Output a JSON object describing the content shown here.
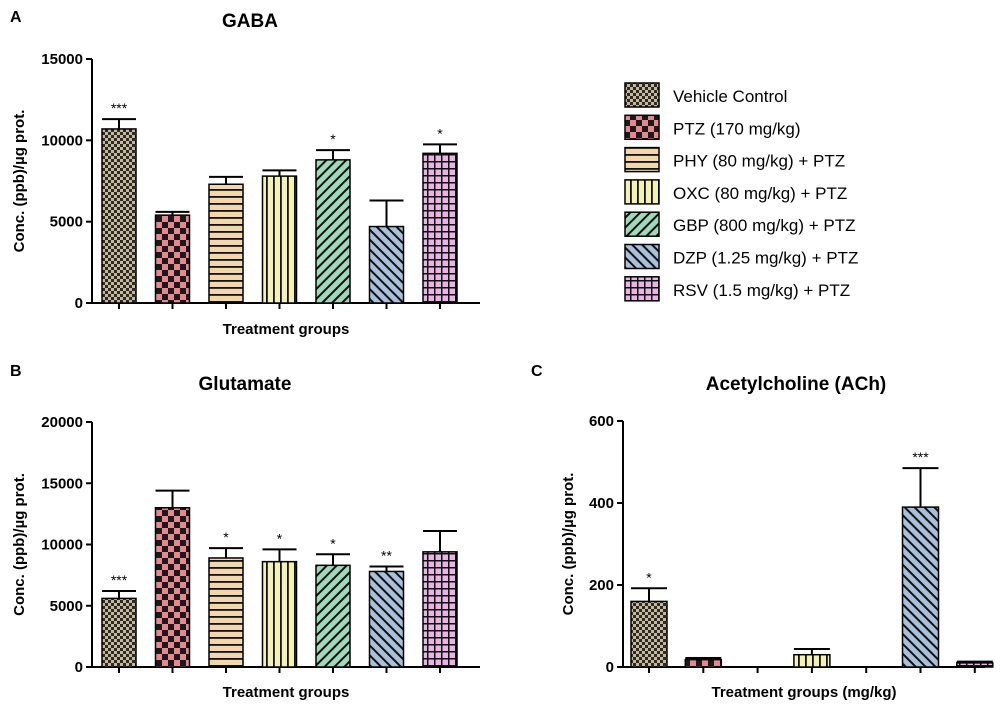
{
  "groups": [
    {
      "name": "Vehicle Control",
      "fill": "#c8b896",
      "pattern": "checker-fine"
    },
    {
      "name": "PTZ (170 mg/kg)",
      "fill": "#e8878f",
      "pattern": "checker-coarse"
    },
    {
      "name": "PHY (80 mg/kg) + PTZ",
      "fill": "#f2d8a8",
      "pattern": "horizontal"
    },
    {
      "name": "OXC (80 mg/kg) + PTZ",
      "fill": "#f3f2b4",
      "pattern": "vertical"
    },
    {
      "name": "GBP (800 mg/kg) + PTZ",
      "fill": "#9fd8ba",
      "pattern": "diag-up"
    },
    {
      "name": "DZP (1.25 mg/kg) + PTZ",
      "fill": "#a9c0da",
      "pattern": "diag-down"
    },
    {
      "name": "RSV (1.5 mg/kg) + PTZ",
      "fill": "#e8b4e2",
      "pattern": "grid"
    }
  ],
  "chart_data": [
    {
      "panel": "A",
      "type": "bar",
      "title": "GABA",
      "xlabel": "Treatment groups",
      "ylabel": "Conc. (ppb)/µg prot.",
      "ylim": [
        0,
        15000
      ],
      "yticks": [
        0,
        5000,
        10000,
        15000
      ],
      "values": [
        10700,
        5400,
        7300,
        7800,
        8800,
        4700,
        9200
      ],
      "errors": [
        600,
        200,
        450,
        350,
        600,
        1600,
        550
      ],
      "significance": [
        "***",
        "",
        "",
        "",
        "*",
        "",
        "*"
      ]
    },
    {
      "panel": "B",
      "type": "bar",
      "title": "Glutamate",
      "xlabel": "Treatment groups",
      "ylabel": "Conc. (ppb)/µg prot.",
      "ylim": [
        0,
        20000
      ],
      "yticks": [
        0,
        5000,
        10000,
        15000,
        20000
      ],
      "values": [
        5600,
        13000,
        8900,
        8600,
        8300,
        7800,
        9400
      ],
      "errors": [
        600,
        1400,
        800,
        1000,
        900,
        400,
        1700
      ],
      "significance": [
        "***",
        "",
        "*",
        "*",
        "*",
        "**",
        ""
      ]
    },
    {
      "panel": "C",
      "type": "bar",
      "title": "Acetylcholine (ACh)",
      "xlabel": "Treatment groups (mg/kg)",
      "ylabel": "Conc. (ppb)/µg prot.",
      "ylim": [
        0,
        600
      ],
      "yticks": [
        0,
        200,
        400,
        600
      ],
      "values": [
        160,
        18,
        0,
        30,
        0,
        390,
        10
      ],
      "errors": [
        32,
        4,
        0,
        14,
        0,
        95,
        3
      ],
      "significance": [
        "*",
        "",
        "",
        "",
        "",
        "***",
        ""
      ]
    }
  ]
}
